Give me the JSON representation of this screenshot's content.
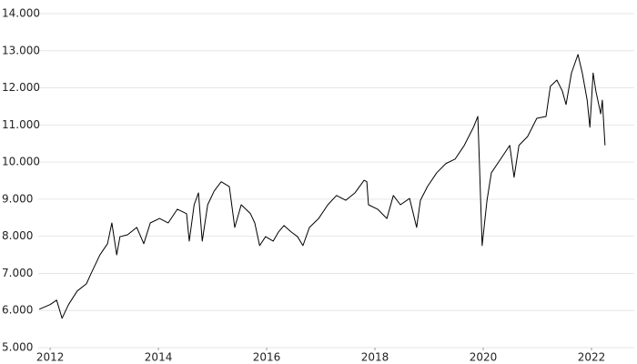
{
  "chart_data": {
    "type": "line",
    "color": "#000000",
    "grid": true,
    "xlim": [
      2011.78,
      2022.79
    ],
    "xticks": [
      2012,
      2014,
      2016,
      2018,
      2020,
      2022
    ],
    "ylim": [
      5000,
      14000
    ],
    "yticks": [
      {
        "value": 5000,
        "label": "5.000"
      },
      {
        "value": 6000,
        "label": "6.000"
      },
      {
        "value": 7000,
        "label": "7.000"
      },
      {
        "value": 8000,
        "label": "8.000"
      },
      {
        "value": 9000,
        "label": "9.000"
      },
      {
        "value": 10000,
        "label": "10.000"
      },
      {
        "value": 11000,
        "label": "11.000"
      },
      {
        "value": 12000,
        "label": "12.000"
      },
      {
        "value": 13000,
        "label": "13.000"
      },
      {
        "value": 14000,
        "label": "14.000"
      }
    ],
    "x": [
      2011.8,
      2012.0,
      2012.12,
      2012.22,
      2012.34,
      2012.5,
      2012.67,
      2012.76,
      2012.92,
      2013.06,
      2013.14,
      2013.23,
      2013.29,
      2013.43,
      2013.6,
      2013.73,
      2013.85,
      2014.02,
      2014.18,
      2014.35,
      2014.52,
      2014.57,
      2014.66,
      2014.74,
      2014.81,
      2014.91,
      2015.03,
      2015.16,
      2015.31,
      2015.41,
      2015.53,
      2015.7,
      2015.78,
      2015.87,
      2015.98,
      2016.12,
      2016.22,
      2016.32,
      2016.45,
      2016.57,
      2016.67,
      2016.79,
      2016.96,
      2017.13,
      2017.29,
      2017.46,
      2017.63,
      2017.8,
      2017.85,
      2017.88,
      2018.05,
      2018.22,
      2018.34,
      2018.47,
      2018.64,
      2018.77,
      2018.84,
      2018.97,
      2019.14,
      2019.31,
      2019.48,
      2019.65,
      2019.82,
      2019.9,
      2019.93,
      2019.98,
      2020.07,
      2020.15,
      2020.32,
      2020.49,
      2020.57,
      2020.66,
      2020.82,
      2020.99,
      2021.16,
      2021.24,
      2021.36,
      2021.46,
      2021.53,
      2021.63,
      2021.75,
      2021.83,
      2021.92,
      2021.97,
      2022.03,
      2022.08,
      2022.17,
      2022.2,
      2022.25
    ],
    "values": [
      6035,
      6160,
      6280,
      5790,
      6160,
      6525,
      6720,
      7010,
      7500,
      7800,
      8360,
      7500,
      7990,
      8040,
      8240,
      7800,
      8360,
      8480,
      8360,
      8730,
      8610,
      7870,
      8850,
      9170,
      7870,
      8850,
      9220,
      9470,
      9340,
      8240,
      8850,
      8610,
      8360,
      7750,
      7990,
      7870,
      8120,
      8290,
      8120,
      7990,
      7750,
      8240,
      8480,
      8850,
      9100,
      8970,
      9170,
      9510,
      9470,
      8850,
      8730,
      8480,
      9100,
      8850,
      9020,
      8240,
      8970,
      9340,
      9710,
      9960,
      10080,
      10450,
      10940,
      11230,
      9960,
      7750,
      8970,
      9710,
      10080,
      10450,
      9590,
      10450,
      10690,
      11180,
      11230,
      12040,
      12210,
      11920,
      11550,
      12400,
      12900,
      12400,
      11670,
      10940,
      12400,
      11920,
      11300,
      11670,
      10450
    ]
  }
}
